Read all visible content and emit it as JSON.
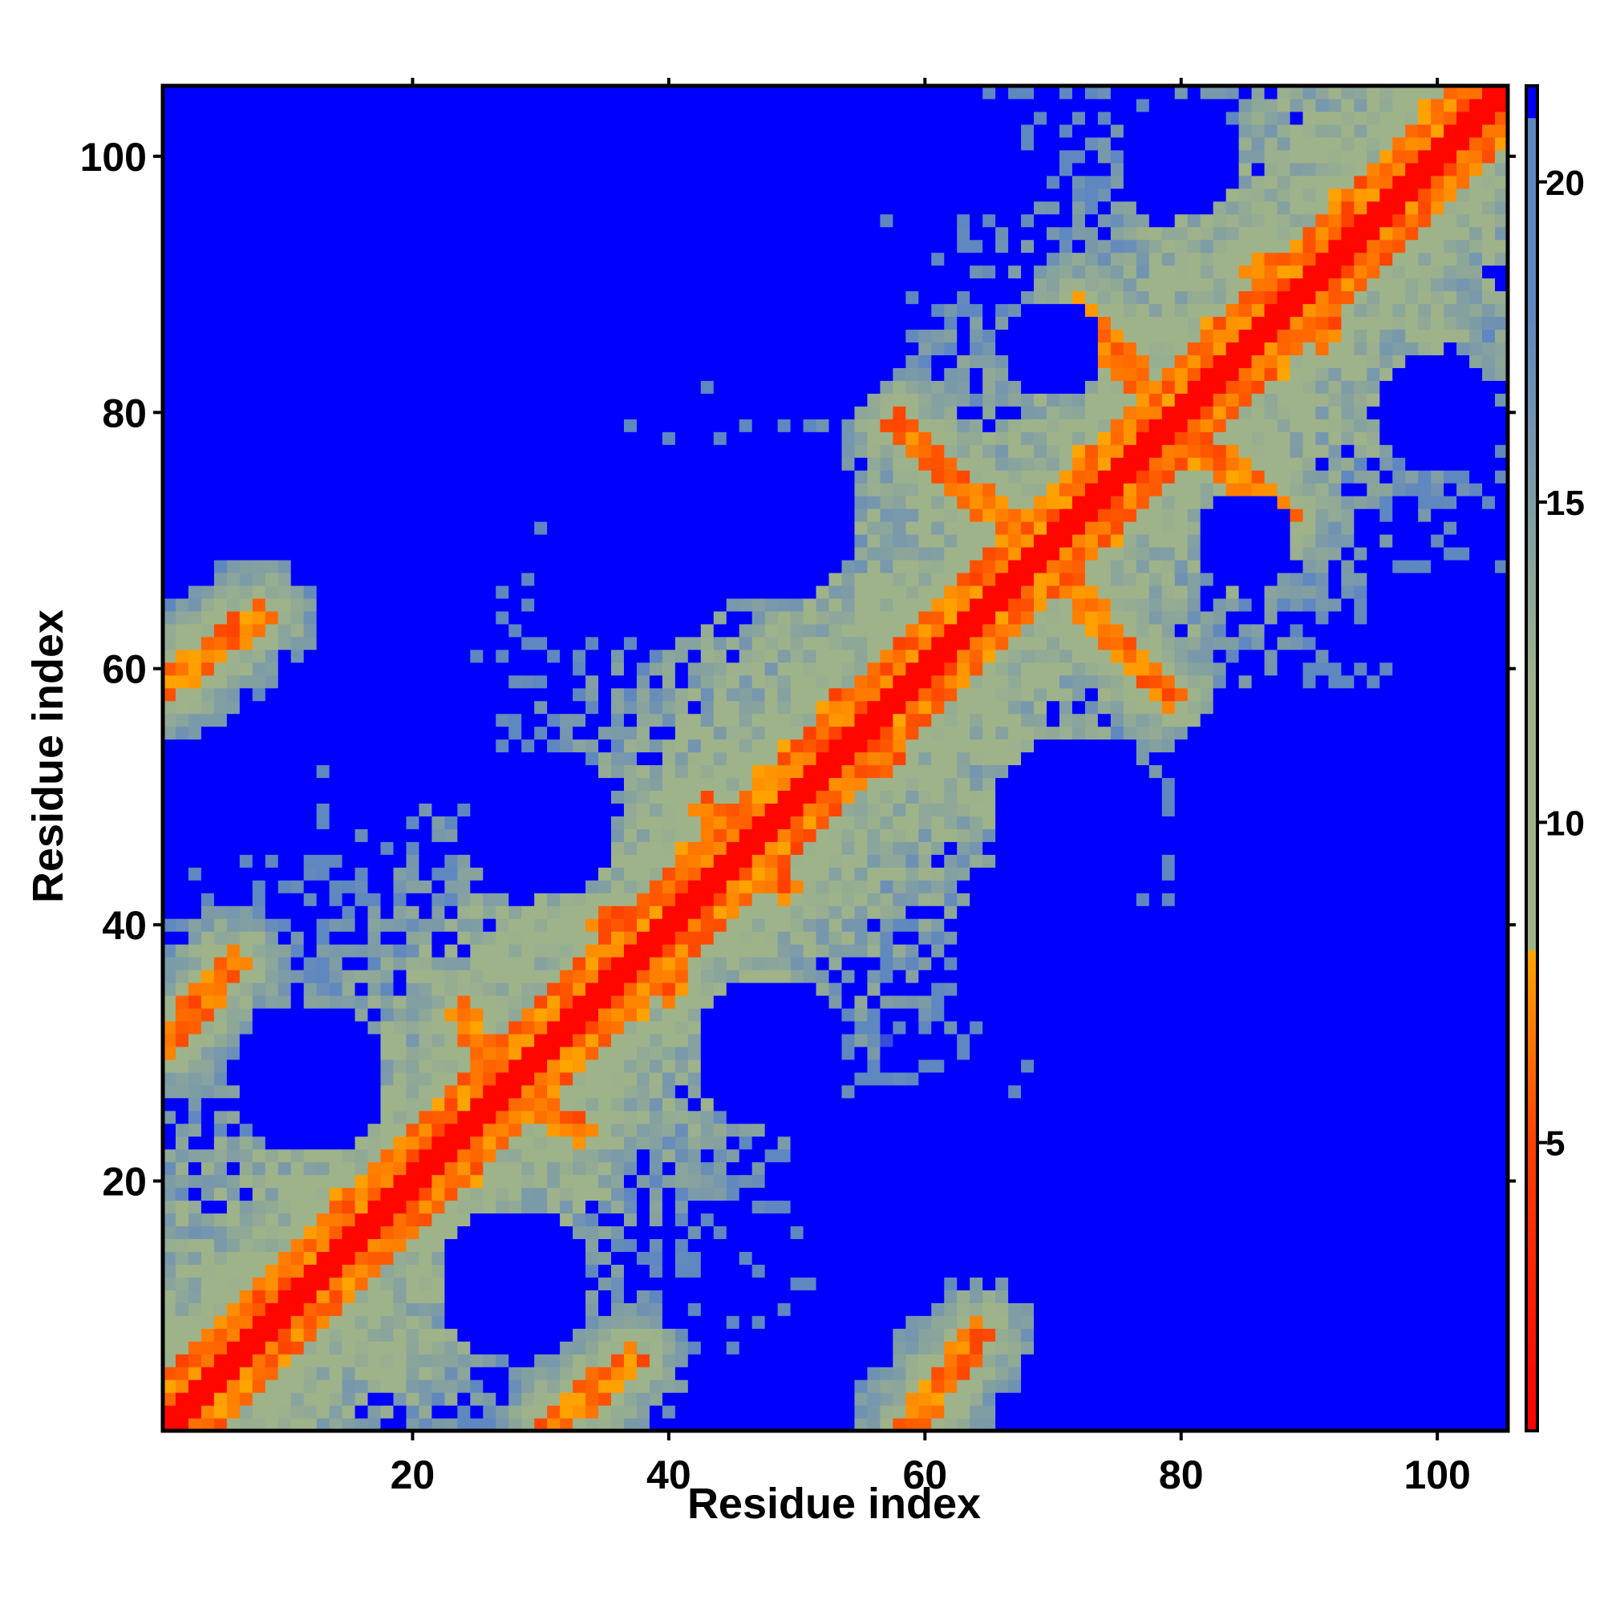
{
  "chart_data": {
    "type": "heatmap",
    "title": "",
    "xlabel": "Residue index",
    "ylabel": "Residue index",
    "n_residues": 105,
    "xlim": [
      1,
      105
    ],
    "ylim": [
      1,
      105
    ],
    "x_ticks": [
      20,
      40,
      60,
      80,
      100
    ],
    "y_ticks": [
      20,
      40,
      60,
      80,
      100
    ],
    "colorbar": {
      "range": [
        0.5,
        21.5
      ],
      "ticks": [
        5,
        10,
        15,
        20
      ],
      "colors": {
        "red": "#ff0000",
        "orange_red": "#ff5500",
        "orange": "#ffa500",
        "sage": "#9fb38a",
        "steel_blue": "#5f87c0",
        "blue": "#0000ff"
      },
      "stops": [
        {
          "value": 0.5,
          "color": "#ff0000"
        },
        {
          "value": 5.0,
          "color": "#ff4000"
        },
        {
          "value": 8.0,
          "color": "#ffa500"
        },
        {
          "value": 8.01,
          "color": "#9fb38a"
        },
        {
          "value": 12.0,
          "color": "#9fb38a"
        },
        {
          "value": 18.0,
          "color": "#5f87c0"
        },
        {
          "value": 20.99,
          "color": "#5f87c0"
        },
        {
          "value": 21.0,
          "color": "#0000ff"
        }
      ]
    },
    "diagonal_band_max_offset": 4,
    "contact_segments": [
      {
        "x0": 1,
        "y0": 59,
        "x1": 8,
        "y1": 64
      },
      {
        "x0": 1,
        "y0": 31,
        "x1": 6,
        "y1": 37
      },
      {
        "x0": 59,
        "y0": 1,
        "x1": 64,
        "y1": 8
      },
      {
        "x0": 31,
        "y0": 1,
        "x1": 37,
        "y1": 6
      },
      {
        "x0": 58,
        "y0": 79,
        "x1": 64,
        "y1": 73
      },
      {
        "x0": 79,
        "y0": 58,
        "x1": 73,
        "y1": 64
      },
      {
        "x0": 72,
        "y0": 88,
        "x1": 78,
        "y1": 81
      },
      {
        "x0": 88,
        "y0": 72,
        "x1": 81,
        "y1": 78
      },
      {
        "x0": 65,
        "y0": 73,
        "x1": 72,
        "y1": 66
      },
      {
        "x0": 73,
        "y0": 65,
        "x1": 66,
        "y1": 72
      },
      {
        "x0": 44,
        "y0": 48,
        "x1": 49,
        "y1": 43
      },
      {
        "x0": 48,
        "y0": 44,
        "x1": 43,
        "y1": 49
      },
      {
        "x0": 24,
        "y0": 33,
        "x1": 27,
        "y1": 27
      },
      {
        "x0": 33,
        "y0": 24,
        "x1": 27,
        "y1": 27
      },
      {
        "x0": 35,
        "y0": 40,
        "x1": 40,
        "y1": 36
      },
      {
        "x0": 40,
        "y0": 35,
        "x1": 36,
        "y1": 40
      },
      {
        "x0": 86,
        "y0": 91,
        "x1": 91,
        "y1": 87
      },
      {
        "x0": 91,
        "y0": 86,
        "x1": 87,
        "y1": 91
      },
      {
        "x0": 53,
        "y0": 57,
        "x1": 57,
        "y1": 53
      },
      {
        "x0": 57,
        "y0": 53,
        "x1": 53,
        "y1": 57
      }
    ],
    "blue_regions": [
      {
        "cx": 16,
        "cy": 85,
        "r": 9
      },
      {
        "cx": 42,
        "cy": 94,
        "r": 10
      },
      {
        "cx": 63,
        "cy": 100,
        "r": 5
      },
      {
        "cx": 12,
        "cy": 28,
        "r": 6
      },
      {
        "cx": 28,
        "cy": 12,
        "r": 6
      },
      {
        "cx": 85,
        "cy": 16,
        "r": 9
      },
      {
        "cx": 94,
        "cy": 42,
        "r": 10
      },
      {
        "cx": 100,
        "cy": 63,
        "r": 5
      },
      {
        "cx": 20,
        "cy": 56,
        "r": 7
      },
      {
        "cx": 56,
        "cy": 20,
        "r": 7
      },
      {
        "cx": 38,
        "cy": 70,
        "r": 8
      },
      {
        "cx": 70,
        "cy": 38,
        "r": 8
      },
      {
        "cx": 72,
        "cy": 48,
        "r": 7
      },
      {
        "cx": 48,
        "cy": 72,
        "r": 7
      },
      {
        "cx": 88,
        "cy": 50,
        "r": 9
      },
      {
        "cx": 50,
        "cy": 88,
        "r": 9
      },
      {
        "cx": 30,
        "cy": 48,
        "r": 6
      },
      {
        "cx": 48,
        "cy": 30,
        "r": 6
      },
      {
        "cx": 100,
        "cy": 80,
        "r": 5
      },
      {
        "cx": 80,
        "cy": 100,
        "r": 5
      },
      {
        "cx": 85,
        "cy": 70,
        "r": 4
      },
      {
        "cx": 70,
        "cy": 85,
        "r": 4
      },
      {
        "cx": 98,
        "cy": 10,
        "r": 5
      },
      {
        "cx": 10,
        "cy": 98,
        "r": 5
      }
    ]
  }
}
